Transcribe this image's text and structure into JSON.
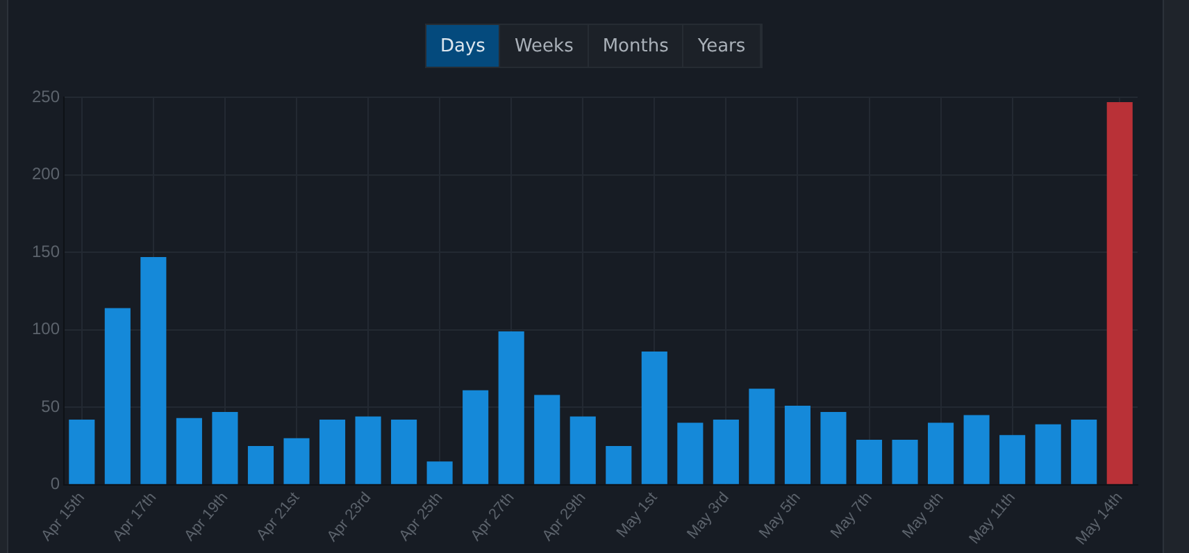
{
  "chart_data": {
    "type": "bar",
    "annotations": [
      "Days",
      "Weeks",
      "Months",
      "Years"
    ],
    "categories": [
      "Apr 15th",
      null,
      "Apr 17th",
      null,
      "Apr 19th",
      null,
      "Apr 21st",
      null,
      "Apr 23rd",
      null,
      "Apr 25th",
      null,
      "Apr 27th",
      null,
      "Apr 29th",
      null,
      "May 1st",
      null,
      "May 3rd",
      null,
      "May 5th",
      null,
      "May 7th",
      null,
      "May 9th",
      null,
      "May 11th",
      null,
      null,
      "May 14th"
    ],
    "values": [
      42,
      114,
      147,
      43,
      47,
      25,
      30,
      42,
      44,
      42,
      15,
      61,
      99,
      58,
      44,
      25,
      86,
      40,
      42,
      62,
      51,
      47,
      29,
      29,
      40,
      45,
      32,
      39,
      42,
      247
    ],
    "colors": [
      "#1589d9",
      "#1589d9",
      "#1589d9",
      "#1589d9",
      "#1589d9",
      "#1589d9",
      "#1589d9",
      "#1589d9",
      "#1589d9",
      "#1589d9",
      "#1589d9",
      "#1589d9",
      "#1589d9",
      "#1589d9",
      "#1589d9",
      "#1589d9",
      "#1589d9",
      "#1589d9",
      "#1589d9",
      "#1589d9",
      "#1589d9",
      "#1589d9",
      "#1589d9",
      "#1589d9",
      "#1589d9",
      "#1589d9",
      "#1589d9",
      "#1589d9",
      "#1589d9",
      "#b93137"
    ],
    "ylim": [
      0,
      250
    ],
    "yticks": [
      0,
      50,
      100,
      150,
      200,
      250
    ],
    "grid": true,
    "legend": false
  }
}
